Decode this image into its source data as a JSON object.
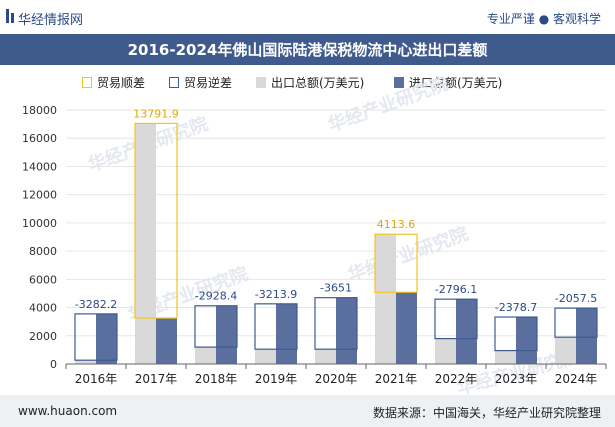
{
  "header": {
    "brand": "华经情报网",
    "tagline": "专业严谨 ● 客观科学"
  },
  "chart_data": {
    "type": "bar",
    "title": "2016-2024年佛山国际陆港保税物流中心进出口差额",
    "categories": [
      "2016年",
      "2017年",
      "2018年",
      "2019年",
      "2020年",
      "2021年",
      "2022年",
      "2023年",
      "2024年"
    ],
    "legend": [
      "贸易顺差",
      "贸易逆差",
      "出口总额(万美元)",
      "进口总额(万美元)"
    ],
    "series": [
      {
        "name": "出口总额(万美元)",
        "values": [
          270,
          17050,
          1200,
          1050,
          1050,
          9200,
          1800,
          950,
          1900
        ]
      },
      {
        "name": "进口总额(万美元)",
        "values": [
          3552,
          3258,
          4128,
          4264,
          4701,
          5086,
          4596,
          3329,
          3958
        ]
      }
    ],
    "balance": [
      -3282.2,
      13791.9,
      -2928.4,
      -3213.9,
      -3651,
      4113.6,
      -2796.1,
      -2378.7,
      -2057.5
    ],
    "balance_labels": [
      "-3282.2",
      "13791.9",
      "-2928.4",
      "-3213.9",
      "-3651",
      "4113.6",
      "-2796.1",
      "-2378.7",
      "-2057.5"
    ],
    "yticks": [
      "0",
      "2000",
      "4000",
      "6000",
      "8000",
      "10000",
      "12000",
      "14000",
      "16000",
      "18000"
    ],
    "ylim": [
      0,
      18000
    ],
    "colors": {
      "export": "#d9d9d9",
      "import": "#5a6f9e",
      "surplus": "#f5c518",
      "deficit": "#3d5a94",
      "surplus_label": "#e0a800",
      "deficit_label": "#2c4a86"
    }
  },
  "watermark": "华经产业研究院",
  "footer": {
    "website": "www.huaon.com",
    "source": "数据来源：中国海关，华经产业研究院整理"
  }
}
